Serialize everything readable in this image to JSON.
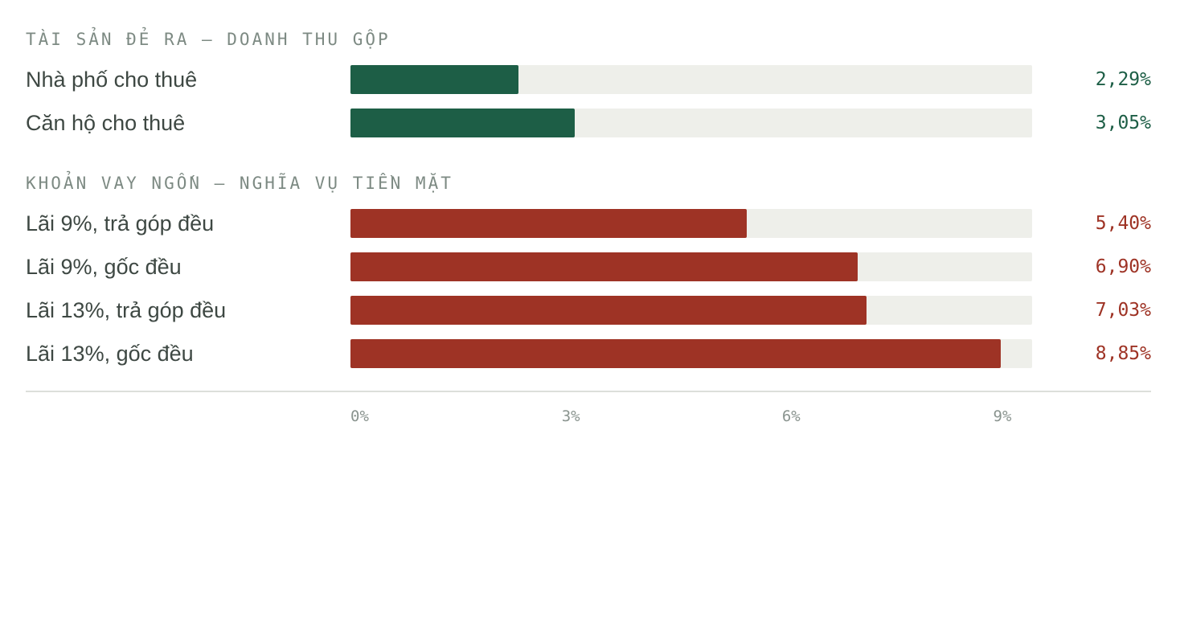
{
  "colors": {
    "income": "#1d5e46",
    "obligation": "#9e3325",
    "track": "#eeefea"
  },
  "groups": [
    {
      "title": "TÀI SẢN ĐẺ RA — DOANH THU GỘP",
      "kind": "income",
      "rows": [
        {
          "label": "Nhà phố cho thuê",
          "value": 2.29,
          "value_text": "2,29%"
        },
        {
          "label": "Căn hộ cho thuê",
          "value": 3.05,
          "value_text": "3,05%"
        }
      ]
    },
    {
      "title": "KHOẢN VAY NGỐN — NGHĨA VỤ TIỀN MẶT",
      "kind": "obligation",
      "rows": [
        {
          "label": "Lãi 9%, trả góp đều",
          "value": 5.4,
          "value_text": "5,40%"
        },
        {
          "label": "Lãi 9%, gốc đều",
          "value": 6.9,
          "value_text": "6,90%"
        },
        {
          "label": "Lãi 13%, trả góp đều",
          "value": 7.03,
          "value_text": "7,03%"
        },
        {
          "label": "Lãi 13%, gốc đều",
          "value": 8.85,
          "value_text": "8,85%"
        }
      ]
    }
  ],
  "x_ticks": [
    "0%",
    "3%",
    "6%",
    "9%"
  ],
  "chart_data": {
    "type": "bar",
    "orientation": "horizontal",
    "categories": [
      "Nhà phố cho thuê",
      "Căn hộ cho thuê",
      "Lãi 9%, trả góp đều",
      "Lãi 9%, gốc đều",
      "Lãi 13%, trả góp đều",
      "Lãi 13%, gốc đều"
    ],
    "series": [
      {
        "name": "TÀI SẢN ĐẺ RA — DOANH THU GỘP",
        "values": [
          2.29,
          3.05,
          null,
          null,
          null,
          null
        ]
      },
      {
        "name": "KHOẢN VAY NGỐN — NGHĨA VỤ TIỀN MẶT",
        "values": [
          null,
          null,
          5.4,
          6.9,
          7.03,
          8.85
        ]
      }
    ],
    "xlim": [
      0,
      9.28
    ],
    "x_ticks": [
      0,
      3,
      6,
      9
    ],
    "x_tick_labels": [
      "0%",
      "3%",
      "6%",
      "9%"
    ],
    "grid": false,
    "legend": "none"
  }
}
